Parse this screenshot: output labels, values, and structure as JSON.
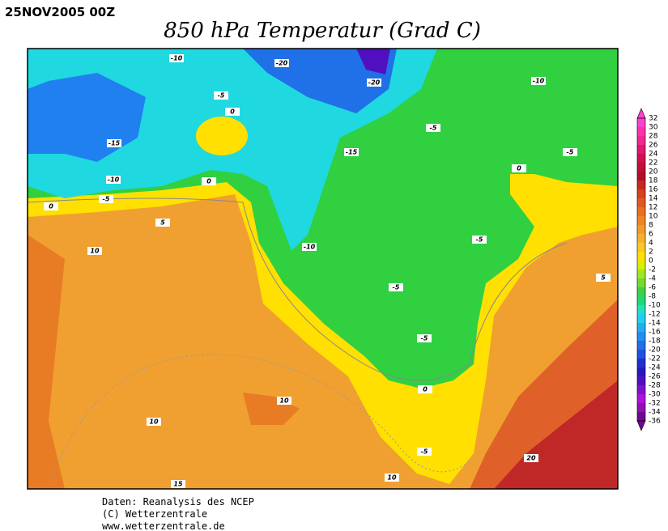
{
  "header": {
    "date": "25NOV2005 00Z",
    "title": "850 hPa Temperatur (Grad C)"
  },
  "colorbar": {
    "labels": [
      32,
      30,
      28,
      26,
      24,
      22,
      20,
      18,
      16,
      14,
      12,
      10,
      8,
      6,
      4,
      2,
      0,
      -2,
      -4,
      -6,
      -8,
      -10,
      -12,
      -14,
      -16,
      -18,
      -20,
      -22,
      -24,
      -26,
      -28,
      -30,
      -32,
      -34,
      -36
    ],
    "colors": [
      "#ff40d0",
      "#ff30b0",
      "#f02890",
      "#e01870",
      "#d01050",
      "#c01038",
      "#b01028",
      "#c82820",
      "#d84020",
      "#e05a20",
      "#e87020",
      "#f08424",
      "#f29a2a",
      "#f5b030",
      "#f8c828",
      "#ffe000",
      "#d8f000",
      "#a0e820",
      "#70dc30",
      "#40d040",
      "#20d878",
      "#20e0c0",
      "#20d0f0",
      "#20b0f0",
      "#2090f0",
      "#2070e8",
      "#2050e0",
      "#2030d0",
      "#2818c0",
      "#5010c0",
      "#8010d0",
      "#b010e0",
      "#9010b0",
      "#700890"
    ]
  },
  "contour_labels": [
    -10,
    -20,
    -20,
    -10,
    -5,
    0,
    -15,
    -15,
    -5,
    -5,
    -10,
    -5,
    0,
    0,
    0,
    5,
    10,
    -10,
    -5,
    -5,
    5,
    -5,
    0,
    10,
    10,
    -5,
    15,
    10,
    20
  ],
  "footer": [
    "Daten: Reanalysis des NCEP",
    "(C) Wetterzentrale",
    "www.wetterzentrale.de"
  ]
}
